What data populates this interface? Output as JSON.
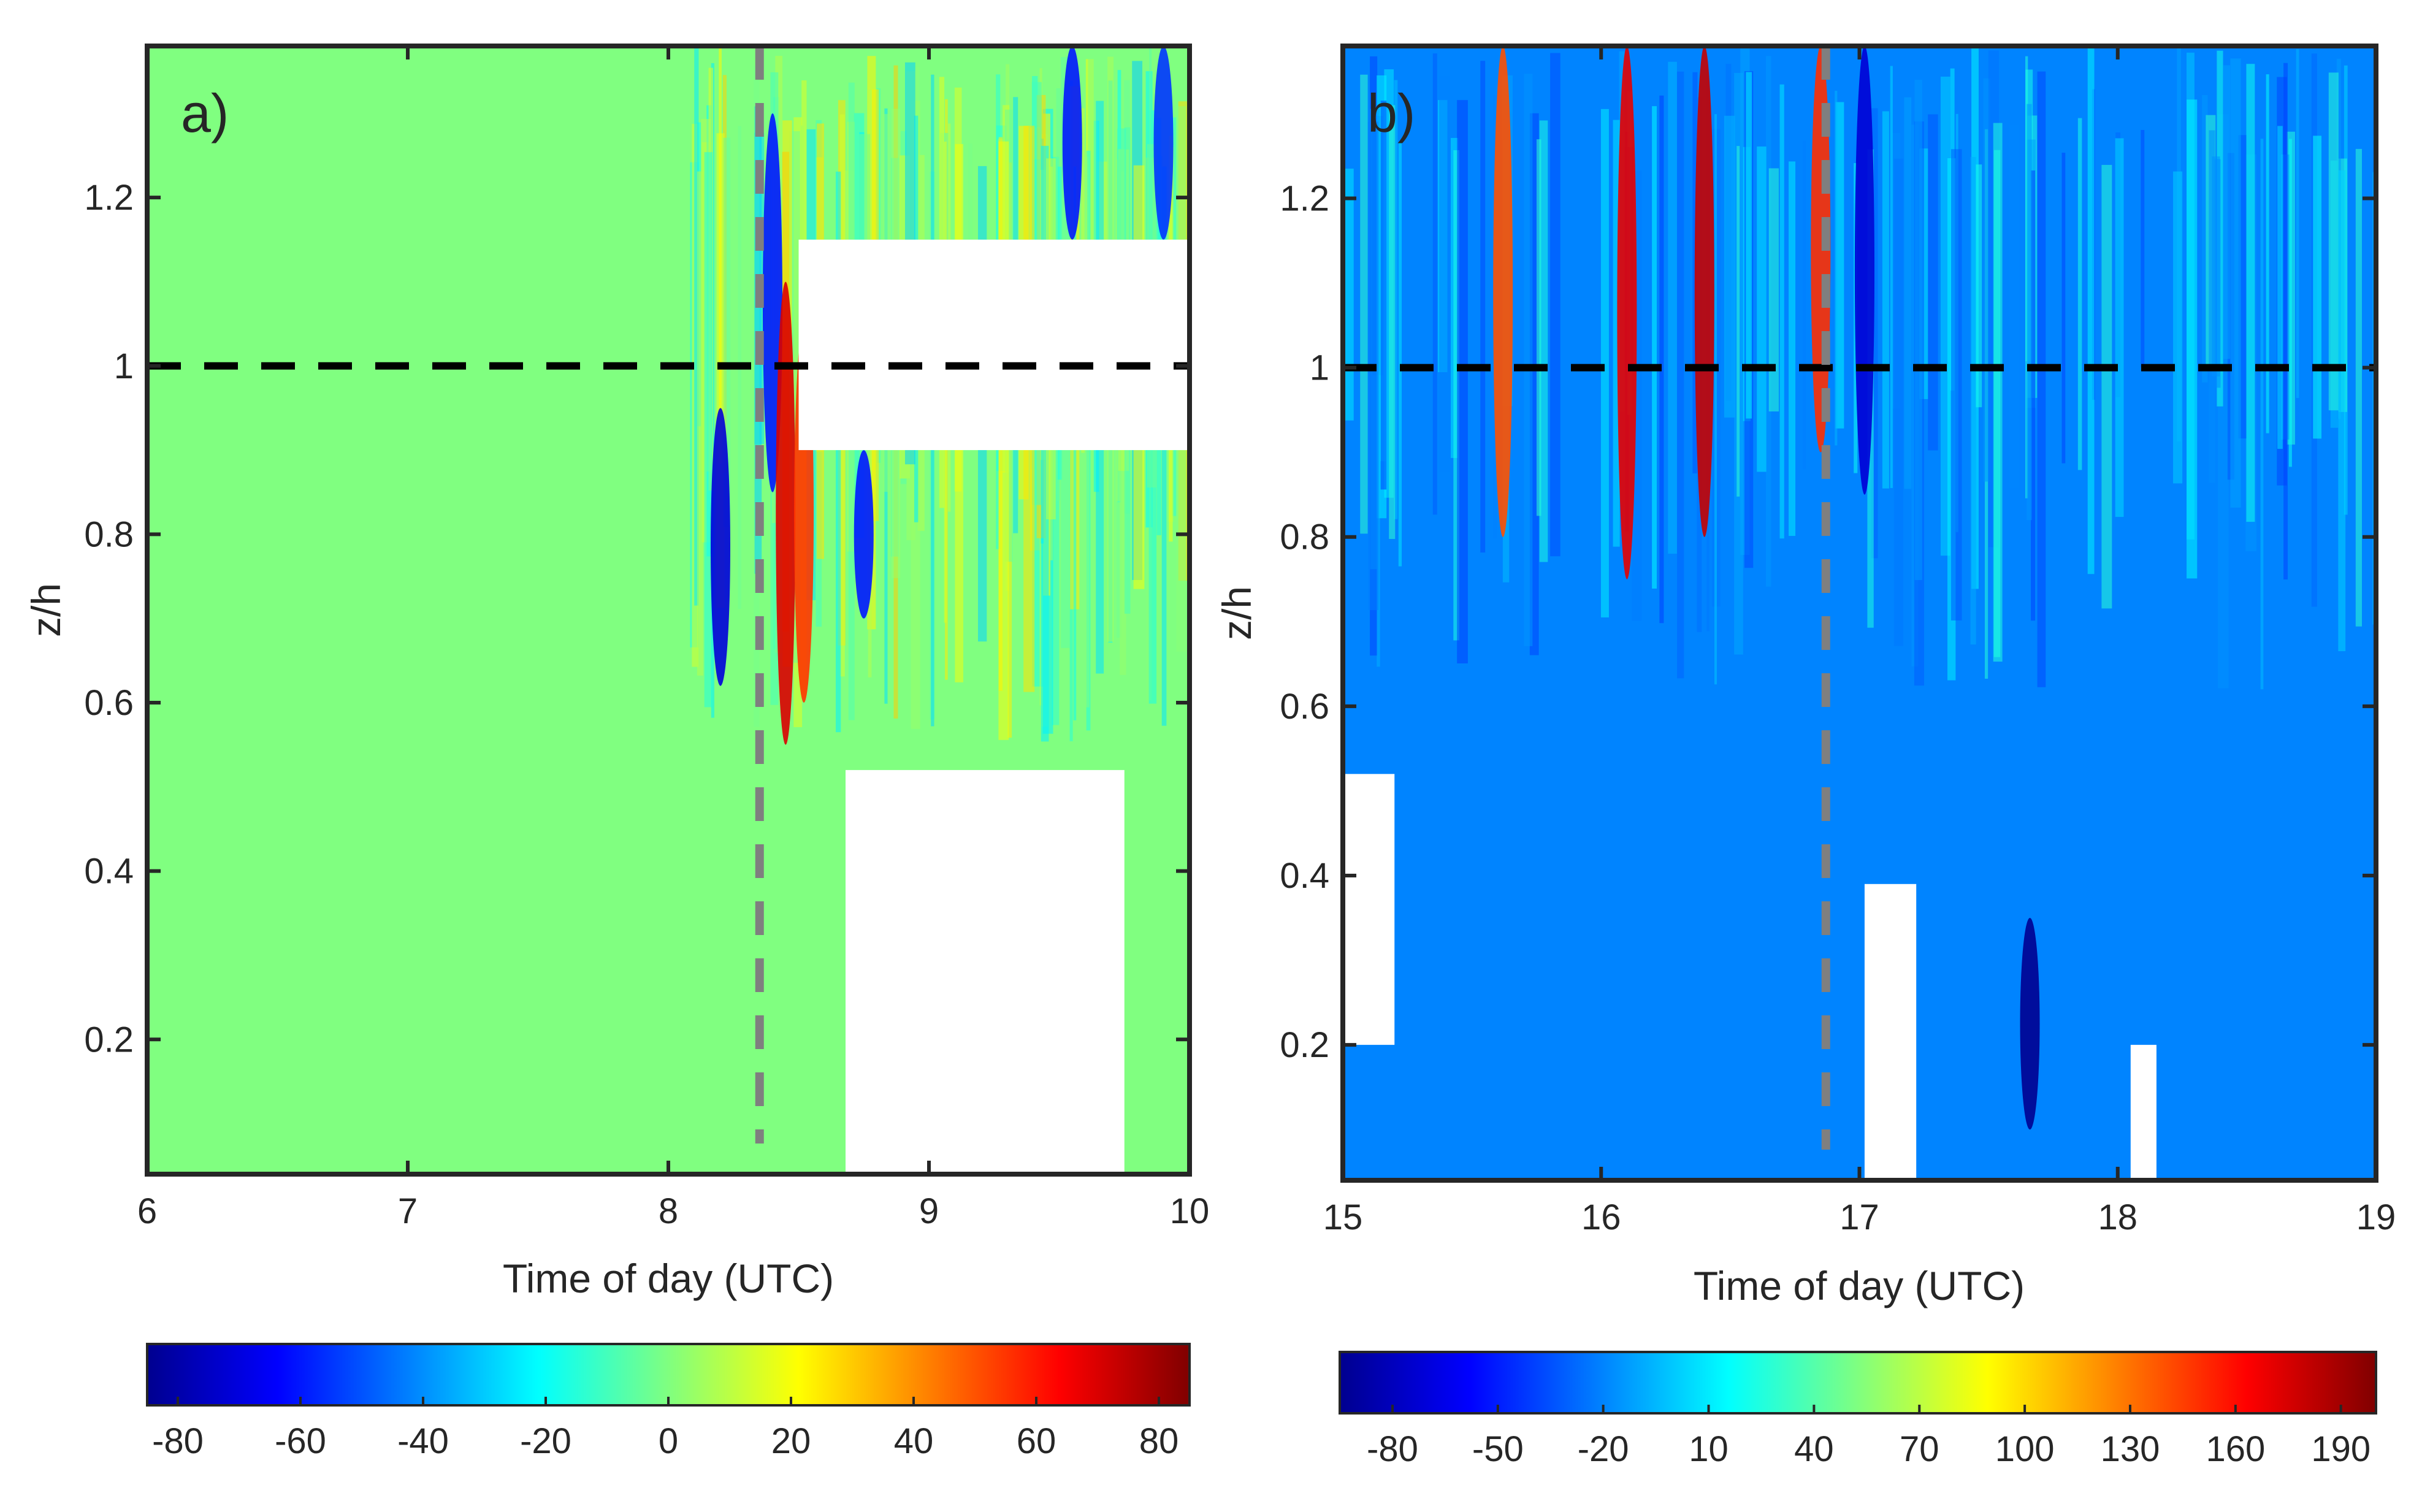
{
  "chart_data": [
    {
      "type": "heatmap",
      "panel_label": "a)",
      "xlabel": "Time of day (UTC)",
      "ylabel": "z/h",
      "xlim": [
        6,
        10
      ],
      "ylim": [
        0.04,
        1.38
      ],
      "x_ticks": [
        6,
        7,
        8,
        9,
        10
      ],
      "x_tick_labels": [
        "6",
        "7",
        "8",
        "9",
        "10"
      ],
      "y_ticks": [
        0.2,
        0.4,
        0.6,
        0.8,
        1.0,
        1.2
      ],
      "y_tick_labels": [
        "0.2",
        "0.4",
        "0.6",
        "0.8",
        "1",
        "1.2"
      ],
      "background_value": 0,
      "hline_zh": 1.0,
      "vline_time": 8.35,
      "colorbar": {
        "range": [
          -85,
          85
        ],
        "colormap": "jet",
        "ticks": [
          -80,
          -60,
          -40,
          -20,
          0,
          20,
          40,
          60,
          80
        ],
        "tick_labels": [
          "-80",
          "-60",
          "-40",
          "-20",
          "0",
          "20",
          "40",
          "60",
          "80"
        ]
      },
      "missing_data_regions": [
        {
          "t0": 8.5,
          "t1": 10.0,
          "z0": 0.9,
          "z1": 1.15
        },
        {
          "t0": 8.68,
          "t1": 9.75,
          "z0": 0.04,
          "z1": 0.52
        }
      ],
      "streaks": [
        {
          "t": 8.2,
          "z0": 0.62,
          "z1": 0.95,
          "value": -70
        },
        {
          "t": 8.4,
          "z0": 0.85,
          "z1": 1.3,
          "value": -60
        },
        {
          "t": 8.45,
          "z0": 0.55,
          "z1": 1.1,
          "value": 70
        },
        {
          "t": 8.52,
          "z0": 0.6,
          "z1": 1.05,
          "value": 55
        },
        {
          "t": 8.75,
          "z0": 0.7,
          "z1": 0.9,
          "value": -60
        },
        {
          "t": 9.55,
          "z0": 1.15,
          "z1": 1.38,
          "value": -60
        },
        {
          "t": 9.9,
          "z0": 1.15,
          "z1": 1.38,
          "value": -55
        }
      ]
    },
    {
      "type": "heatmap",
      "panel_label": "b)",
      "xlabel": "Time of day (UTC)",
      "ylabel": "z/h",
      "xlim": [
        15,
        19
      ],
      "ylim": [
        0.04,
        1.38
      ],
      "x_ticks": [
        15,
        16,
        17,
        18,
        19
      ],
      "x_tick_labels": [
        "15",
        "16",
        "17",
        "18",
        "19"
      ],
      "y_ticks": [
        0.2,
        0.4,
        0.6,
        0.8,
        1.0,
        1.2
      ],
      "y_tick_labels": [
        "0.2",
        "0.4",
        "0.6",
        "0.8",
        "1",
        "1.2"
      ],
      "background_value": -20,
      "hline_zh": 1.0,
      "vline_time": 16.87,
      "colorbar": {
        "range": [
          -95,
          200
        ],
        "colormap": "jet",
        "ticks": [
          -80,
          -50,
          -20,
          10,
          40,
          70,
          100,
          130,
          160,
          190
        ],
        "tick_labels": [
          "-80",
          "-50",
          "-20",
          "10",
          "40",
          "70",
          "100",
          "130",
          "160",
          "190"
        ]
      },
      "missing_data_regions": [
        {
          "t0": 15.0,
          "t1": 15.2,
          "z0": 0.2,
          "z1": 0.52
        },
        {
          "t0": 17.02,
          "t1": 17.22,
          "z0": 0.04,
          "z1": 0.39
        },
        {
          "t0": 18.05,
          "t1": 18.15,
          "z0": 0.04,
          "z1": 0.2
        }
      ],
      "streaks": [
        {
          "t": 15.62,
          "z0": 0.8,
          "z1": 1.38,
          "value": 140
        },
        {
          "t": 16.1,
          "z0": 0.75,
          "z1": 1.38,
          "value": 170
        },
        {
          "t": 16.4,
          "z0": 0.8,
          "z1": 1.38,
          "value": 180
        },
        {
          "t": 16.85,
          "z0": 0.9,
          "z1": 1.38,
          "value": 150
        },
        {
          "t": 17.02,
          "z0": 0.85,
          "z1": 1.38,
          "value": -70
        },
        {
          "t": 17.66,
          "z0": 0.1,
          "z1": 0.35,
          "value": -90
        }
      ]
    }
  ]
}
